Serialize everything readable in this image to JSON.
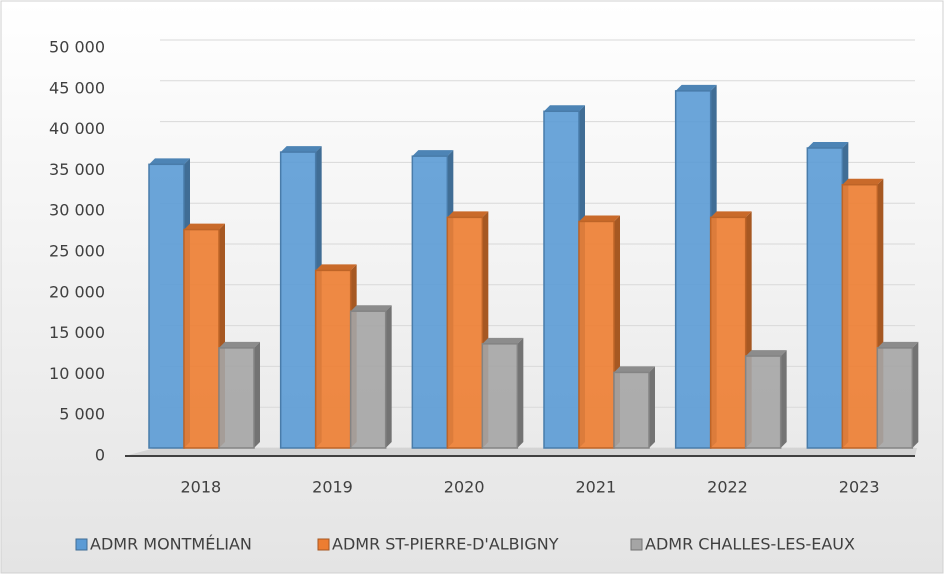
{
  "chart_data": {
    "type": "bar3d",
    "categories": [
      "2018",
      "2019",
      "2020",
      "2021",
      "2022",
      "2023"
    ],
    "series": [
      {
        "name": "ADMR MONTMÉLIAN",
        "color": "#5b9bd5",
        "values": [
          35500,
          37000,
          36500,
          42000,
          44500,
          37500
        ]
      },
      {
        "name": "ADMR ST-PIERRE-D'ALBIGNY",
        "color": "#ed7d31",
        "values": [
          27500,
          22500,
          29000,
          28500,
          29000,
          33000
        ]
      },
      {
        "name": "ADMR CHALLES-LES-EAUX",
        "color": "#a5a5a5",
        "values": [
          13000,
          17500,
          13500,
          10000,
          12000,
          13000
        ]
      }
    ],
    "ylim": [
      0,
      50000
    ],
    "yticks": [
      0,
      {
        "value": 5000,
        "label": "5 000"
      },
      {
        "value": 10000,
        "label": "10 000"
      },
      {
        "value": 15000,
        "label": "15 000"
      },
      {
        "value": 20000,
        "label": "20 000"
      },
      {
        "value": 25000,
        "label": "25 000"
      },
      {
        "value": 30000,
        "label": "30 000"
      },
      {
        "value": 35000,
        "label": "35 000"
      },
      {
        "value": 40000,
        "label": "40 000"
      },
      {
        "value": 45000,
        "label": "45 000"
      },
      {
        "value": 50000,
        "label": "50 000"
      }
    ],
    "grid": true,
    "legend": "bottom"
  }
}
